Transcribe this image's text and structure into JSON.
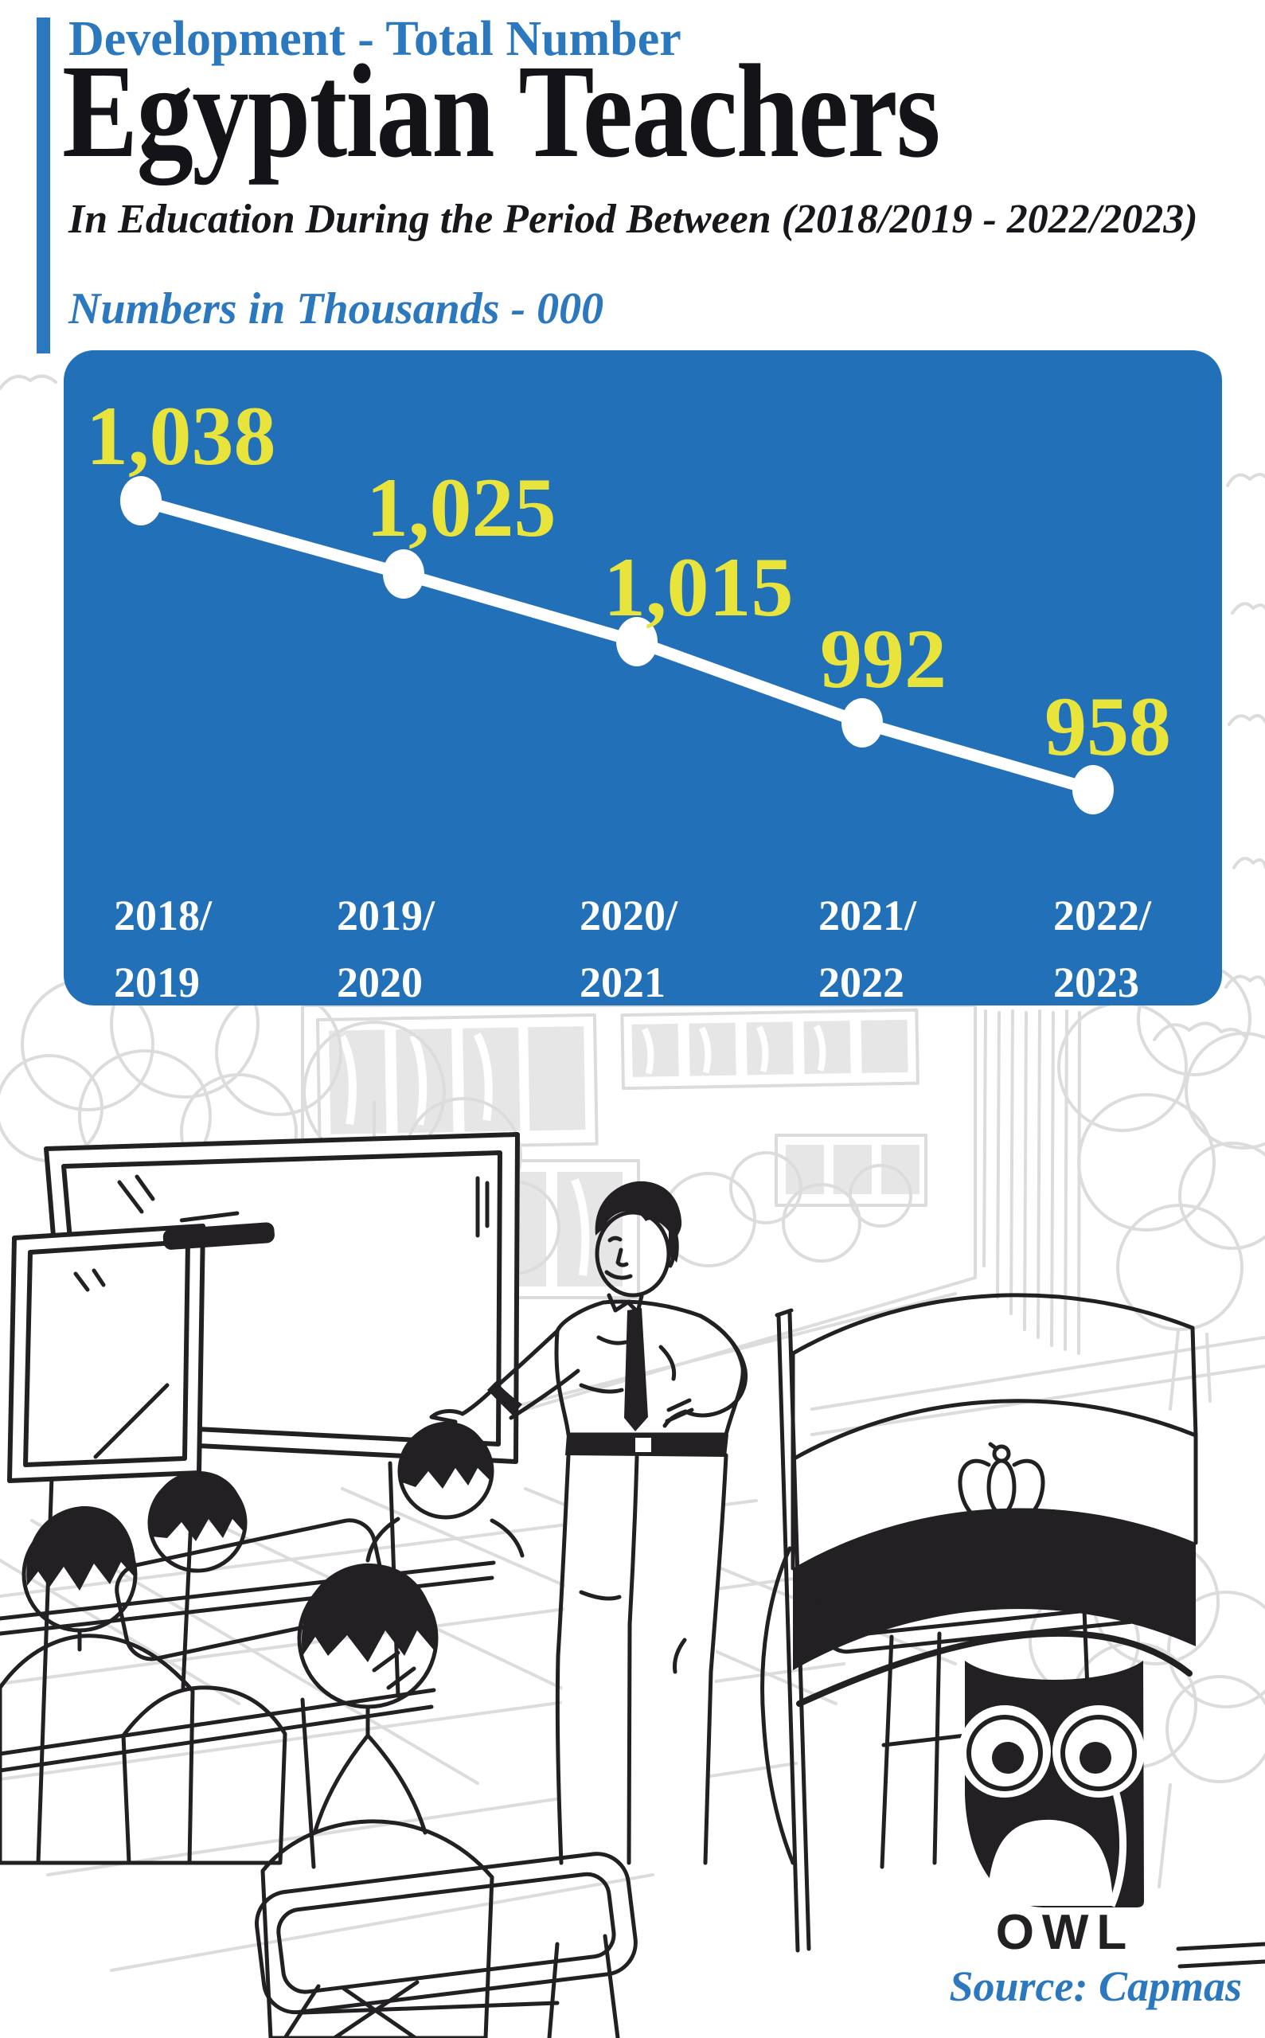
{
  "header": {
    "kicker": "Development - Total Number",
    "title": "Egyptian Teachers",
    "subtitle": "In Education During the Period Between (2018/2019 - 2022/2023)",
    "unit_note": "Numbers in Thousands - 000"
  },
  "chart_data": {
    "type": "line",
    "title": "Total Number of Egyptian Teachers in Education",
    "categories": [
      "2018/2019",
      "2019/2020",
      "2020/2021",
      "2021/2022",
      "2022/2023"
    ],
    "category_labels_two_line": [
      [
        "2018/",
        "2019"
      ],
      [
        "2019/",
        "2020"
      ],
      [
        "2020/",
        "2021"
      ],
      [
        "2021/",
        "2022"
      ],
      [
        "2022/",
        "2023"
      ]
    ],
    "values": [
      1038,
      1025,
      1015,
      992,
      958
    ],
    "value_labels": [
      "1,038",
      "1,025",
      "1,015",
      "992",
      "958"
    ],
    "unit": "thousands",
    "xlabel": "",
    "ylabel": "",
    "legend": "none",
    "grid": false,
    "series_color": "#ffffff",
    "label_color": "#e9e43c",
    "panel_color": "#2170b8"
  },
  "illustration": {
    "scene": "line-art classroom: teacher presenting at a whiteboard to students seated at desks",
    "flag": "Egypt flag with eagle emblem",
    "flag_colors": {
      "red": "#ee2026",
      "white": "#ffffff",
      "black": "#232024"
    }
  },
  "footer": {
    "logo_text": "OWL",
    "source_label": "Source: Capmas"
  },
  "colors": {
    "accent_blue": "#2b78be",
    "panel_blue": "#2170b8",
    "value_yellow": "#e9e43c",
    "ink": "#232024",
    "flag_red": "#ee2026",
    "art_gray": "#dcdcdc",
    "white": "#ffffff"
  }
}
